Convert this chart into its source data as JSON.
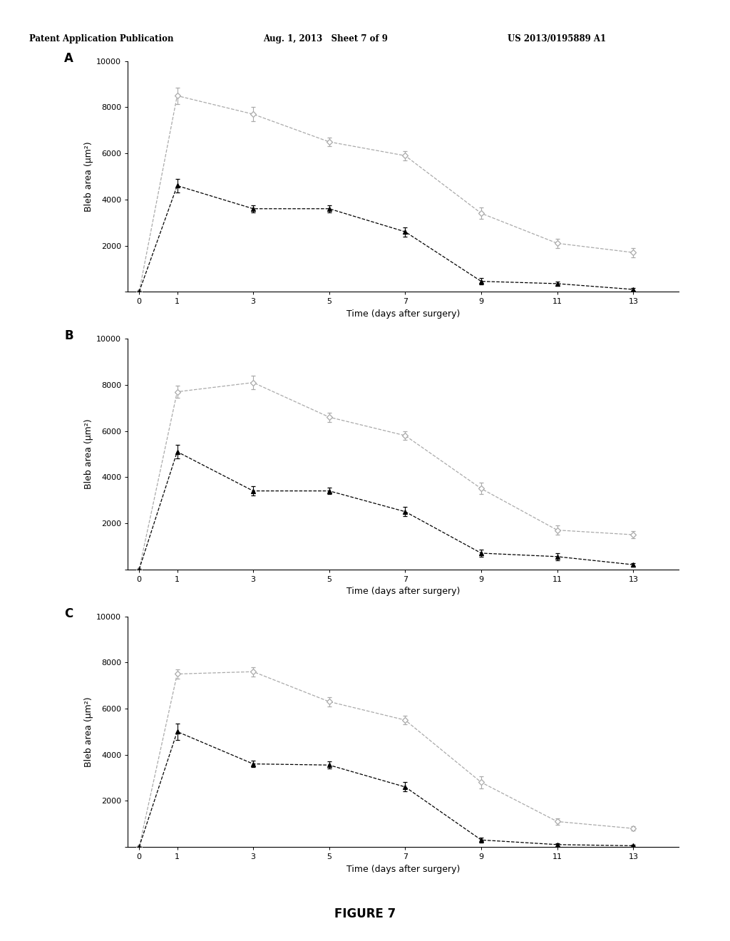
{
  "header_left": "Patent Application Publication",
  "header_center": "Aug. 1, 2013   Sheet 7 of 9",
  "header_right": "US 2013/0195889 A1",
  "figure_label": "FIGURE 7",
  "x_ticks": [
    0,
    1,
    3,
    5,
    7,
    9,
    11,
    13
  ],
  "xlabel": "Time (days after surgery)",
  "ylabel": "Bleb area (μm²)",
  "ylim": [
    0,
    10000
  ],
  "yticks": [
    0,
    2000,
    4000,
    6000,
    8000,
    10000
  ],
  "panel_A": {
    "label": "A",
    "gray_y": [
      0,
      8500,
      7700,
      6500,
      5900,
      3400,
      2100,
      1700
    ],
    "gray_yerr": [
      0,
      350,
      300,
      200,
      200,
      250,
      200,
      200
    ],
    "black_y": [
      0,
      4600,
      3600,
      3600,
      2600,
      450,
      350,
      100
    ],
    "black_yerr": [
      0,
      300,
      150,
      150,
      200,
      150,
      100,
      50
    ]
  },
  "panel_B": {
    "label": "B",
    "gray_y": [
      0,
      7700,
      8100,
      6600,
      5800,
      3500,
      1700,
      1500
    ],
    "gray_yerr": [
      0,
      250,
      300,
      200,
      200,
      250,
      200,
      150
    ],
    "black_y": [
      0,
      5100,
      3400,
      3400,
      2500,
      700,
      550,
      200
    ],
    "black_yerr": [
      0,
      300,
      200,
      150,
      200,
      150,
      150,
      80
    ]
  },
  "panel_C": {
    "label": "C",
    "gray_y": [
      0,
      7500,
      7600,
      6300,
      5500,
      2800,
      1100,
      800
    ],
    "gray_yerr": [
      0,
      200,
      200,
      200,
      180,
      250,
      150,
      100
    ],
    "black_y": [
      0,
      5000,
      3600,
      3550,
      2600,
      300,
      100,
      50
    ],
    "black_yerr": [
      0,
      350,
      150,
      150,
      200,
      100,
      60,
      30
    ]
  },
  "gray_color": "#aaaaaa",
  "black_color": "#000000",
  "bg_color": "#ffffff",
  "fontsize_header": 8.5,
  "fontsize_tick": 8,
  "fontsize_axis": 9,
  "fontsize_panel": 12,
  "fontsize_figure": 12
}
